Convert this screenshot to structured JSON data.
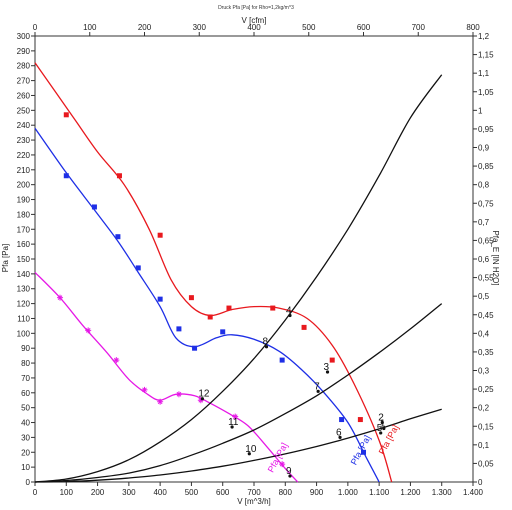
{
  "chart_data": {
    "type": "line",
    "title": "Druck Pfa [Pa] for Rho=1,2kg/m^3",
    "xlabel": "V [m^3/h]",
    "xlabel_top": "V [cfm]",
    "ylabel": "Pfa [Pa]",
    "ylabel_right": "Pfa_E [IN H2O]",
    "xlim": [
      0,
      1400
    ],
    "ylim": [
      0,
      300
    ],
    "xlim_top": [
      0,
      800
    ],
    "ylim_right": [
      0,
      1.2
    ],
    "x_ticks": [
      "0",
      "100",
      "200",
      "300",
      "400",
      "500",
      "600",
      "700",
      "800",
      "900",
      "1.000",
      "1.100",
      "1.200",
      "1.300",
      "1.400"
    ],
    "x_ticks_top": [
      "0",
      "100",
      "200",
      "300",
      "400",
      "500",
      "600",
      "700",
      "800"
    ],
    "y_ticks": [
      "0",
      "10",
      "20",
      "30",
      "40",
      "50",
      "60",
      "70",
      "80",
      "90",
      "100",
      "110",
      "120",
      "130",
      "140",
      "150",
      "160",
      "170",
      "180",
      "190",
      "200",
      "210",
      "220",
      "230",
      "240",
      "250",
      "260",
      "270",
      "280",
      "290",
      "300"
    ],
    "y_ticks_right": [
      "0",
      "0,05",
      "0,1",
      "0,15",
      "0,2",
      "0,25",
      "0,3",
      "0,35",
      "0,4",
      "0,45",
      "0,5",
      "0,55",
      "0,6",
      "0,65",
      "0,7",
      "0,75",
      "0,8",
      "0,85",
      "0,9",
      "0,95",
      "1",
      "1,05",
      "1,1",
      "1,15",
      "1,2"
    ],
    "grid": false,
    "series": [
      {
        "name": "Pfa [Pa]",
        "color": "#e8191e",
        "marker": "square",
        "x": [
          0,
          120,
          200,
          285,
          365,
          435,
          500,
          560,
          630,
          700,
          780,
          870,
          950,
          1020,
          1100,
          1140
        ],
        "y": [
          282,
          246,
          222,
          200,
          170,
          136,
          118,
          112,
          116,
          118,
          117,
          110,
          92,
          66,
          28,
          0
        ],
        "markers_x": [
          100,
          270,
          400,
          500,
          560,
          620,
          760,
          860,
          950,
          1040
        ],
        "markers_y": [
          247,
          206,
          166,
          124,
          111,
          117,
          117,
          104,
          82,
          42
        ]
      },
      {
        "name": "Pfa [Pa]",
        "color": "#1e2fe6",
        "marker": "square",
        "x": [
          0,
          100,
          190,
          265,
          330,
          400,
          450,
          510,
          580,
          630,
          700,
          780,
          850,
          920,
          1000,
          1060,
          1100
        ],
        "y": [
          238,
          208,
          183,
          162,
          141,
          118,
          97,
          91,
          97,
          99,
          96,
          88,
          76,
          61,
          40,
          16,
          0
        ],
        "markers_x": [
          100,
          190,
          265,
          330,
          400,
          460,
          510,
          600,
          790,
          980,
          1050
        ],
        "markers_y": [
          206,
          185,
          165,
          144,
          123,
          103,
          90,
          101,
          82,
          42,
          20
        ]
      },
      {
        "name": "Pfa [Pa]",
        "color": "#e619e6",
        "marker": "cross",
        "x": [
          0,
          80,
          150,
          230,
          300,
          360,
          400,
          450,
          510,
          560,
          620,
          680,
          740,
          800,
          840
        ],
        "y": [
          141,
          124,
          106,
          87,
          69,
          59,
          55,
          59,
          58,
          53,
          46,
          38,
          24,
          9,
          0
        ],
        "markers_x": [
          80,
          170,
          260,
          350,
          400,
          460,
          530,
          640,
          790
        ],
        "markers_y": [
          124,
          102,
          82,
          62,
          54,
          59,
          55,
          44,
          12
        ]
      },
      {
        "name": "",
        "color": "#111111",
        "marker": "none",
        "x": [
          0,
          100,
          200,
          300,
          400,
          500,
          600,
          700,
          800,
          900,
          1000,
          1100,
          1200,
          1300
        ],
        "y": [
          0,
          2,
          7,
          15,
          27,
          42,
          61,
          83,
          109,
          138,
          170,
          206,
          245,
          274
        ]
      },
      {
        "name": "",
        "color": "#111111",
        "marker": "none",
        "x": [
          0,
          100,
          200,
          300,
          400,
          500,
          600,
          700,
          800,
          900,
          1000,
          1100,
          1200,
          1300
        ],
        "y": [
          0,
          1,
          3,
          6,
          11,
          18,
          26,
          35,
          46,
          58,
          72,
          87,
          103,
          120
        ]
      },
      {
        "name": "",
        "color": "#111111",
        "marker": "none",
        "x": [
          0,
          100,
          200,
          300,
          400,
          500,
          600,
          700,
          800,
          900,
          1000,
          1100,
          1200,
          1300
        ],
        "y": [
          0,
          0.3,
          1.2,
          2.7,
          4.7,
          7.4,
          10.6,
          14.5,
          18.9,
          23.9,
          29.5,
          35.7,
          42.5,
          49
        ]
      }
    ],
    "point_labels": [
      {
        "label": "1",
        "x": 1115,
        "y": 36
      },
      {
        "label": "2",
        "x": 1110,
        "y": 40
      },
      {
        "label": "3",
        "x": 935,
        "y": 74
      },
      {
        "label": "4",
        "x": 815,
        "y": 112
      },
      {
        "label": "5",
        "x": 1105,
        "y": 33
      },
      {
        "label": "6",
        "x": 975,
        "y": 30
      },
      {
        "label": "7",
        "x": 905,
        "y": 61
      },
      {
        "label": "8",
        "x": 740,
        "y": 91
      },
      {
        "label": "9",
        "x": 815,
        "y": 4
      },
      {
        "label": "10",
        "x": 685,
        "y": 19
      },
      {
        "label": "11",
        "x": 630,
        "y": 37
      },
      {
        "label": "12",
        "x": 535,
        "y": 56
      }
    ],
    "curve_labels": [
      {
        "text": "Pfa [Pa]",
        "x": 1115,
        "y": 18,
        "color": "#e8191e"
      },
      {
        "text": "Pfa [Pa]",
        "x": 1025,
        "y": 11,
        "color": "#1e2fe6"
      },
      {
        "text": "Pfa [Pa]",
        "x": 760,
        "y": 6,
        "color": "#e619e6"
      }
    ]
  }
}
